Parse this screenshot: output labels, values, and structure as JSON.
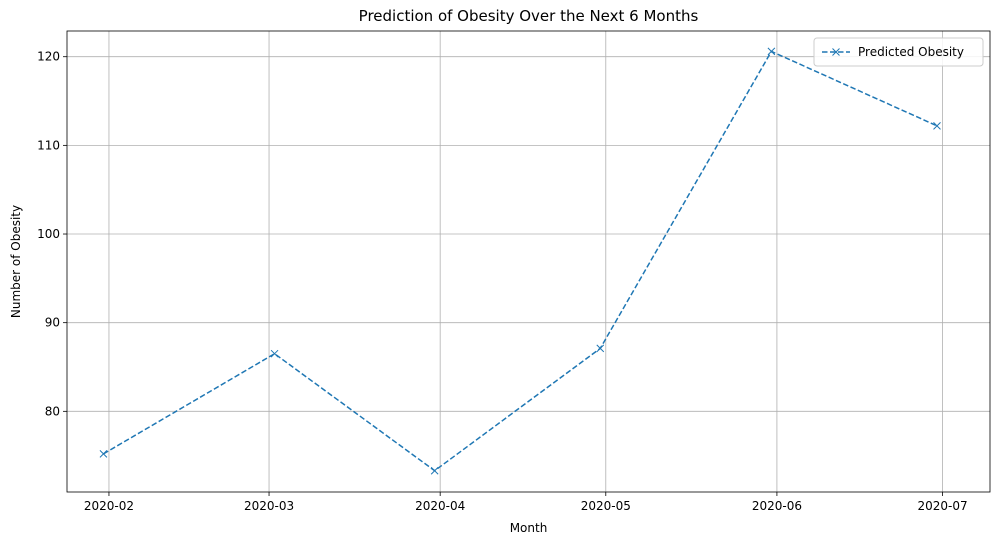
{
  "chart_data": {
    "type": "line",
    "title": "Prediction of Obesity Over the Next 6 Months",
    "xlabel": "Month",
    "ylabel": "Number of Obesity",
    "categories": [
      "2020-02",
      "2020-03",
      "2020-04",
      "2020-05",
      "2020-06",
      "2020-07"
    ],
    "x_day_offsets": [
      0,
      29,
      60,
      90,
      121,
      151
    ],
    "yticks": [
      80,
      90,
      100,
      110,
      120
    ],
    "ylim": [
      70.9,
      122.9
    ],
    "xlim_days": [
      -7.6,
      159.6
    ],
    "grid": true,
    "legend_position": "top-right",
    "series": [
      {
        "name": "Predicted Obesity",
        "x_day_offsets": [
          -1,
          30,
          59,
          89,
          120,
          150
        ],
        "values": [
          75.2,
          86.5,
          73.3,
          87.1,
          120.6,
          112.2
        ],
        "color": "#1f77b4",
        "linestyle": "dashed",
        "marker": "x"
      }
    ]
  }
}
